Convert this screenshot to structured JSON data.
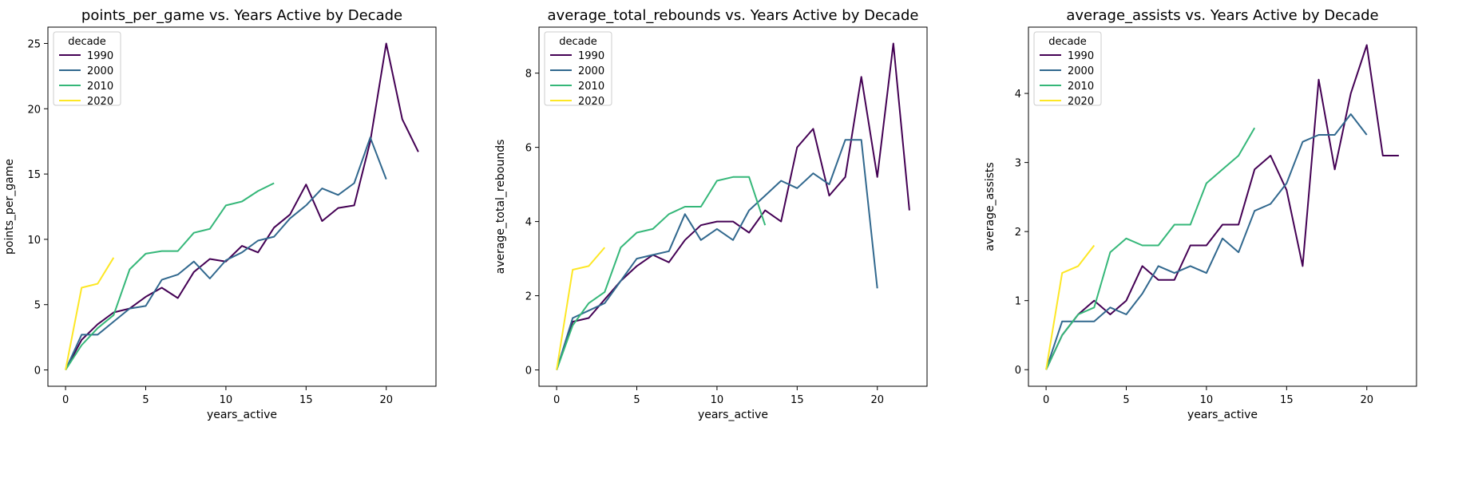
{
  "chart_data": [
    {
      "type": "line",
      "title": "points_per_game vs. Years Active by Decade",
      "xlabel": "years_active",
      "ylabel": "points_per_game",
      "xlim": [
        -1.1,
        23.1
      ],
      "ylim": [
        -1.25,
        26.25
      ],
      "xticks": [
        0,
        5,
        10,
        15,
        20
      ],
      "yticks": [
        0,
        5,
        10,
        15,
        20,
        25
      ],
      "legend": {
        "title": "decade",
        "placement": "top-left"
      },
      "series": [
        {
          "name": "1990",
          "color": "#440154",
          "x": [
            0,
            1,
            2,
            3,
            4,
            5,
            6,
            7,
            8,
            9,
            10,
            11,
            12,
            13,
            14,
            15,
            16,
            17,
            18,
            19,
            20,
            21,
            22
          ],
          "values": [
            0,
            2.3,
            3.5,
            4.4,
            4.7,
            5.6,
            6.3,
            5.5,
            7.5,
            8.5,
            8.3,
            9.5,
            9.0,
            10.9,
            11.9,
            14.2,
            11.4,
            12.4,
            12.6,
            17.5,
            25.0,
            19.2,
            16.7
          ]
        },
        {
          "name": "2000",
          "color": "#31688e",
          "x": [
            0,
            1,
            2,
            3,
            4,
            5,
            6,
            7,
            8,
            9,
            10,
            11,
            12,
            13,
            14,
            15,
            16,
            17,
            18,
            19,
            20
          ],
          "values": [
            0,
            2.7,
            2.7,
            3.7,
            4.7,
            4.9,
            6.9,
            7.3,
            8.3,
            7.0,
            8.4,
            9.0,
            9.9,
            10.2,
            11.6,
            12.6,
            13.9,
            13.4,
            14.3,
            17.8,
            14.6
          ]
        },
        {
          "name": "2010",
          "color": "#35b779",
          "x": [
            0,
            1,
            2,
            3,
            4,
            5,
            6,
            7,
            8,
            9,
            10,
            11,
            12,
            13
          ],
          "values": [
            0,
            1.9,
            3.2,
            4.2,
            7.7,
            8.9,
            9.1,
            9.1,
            10.5,
            10.8,
            12.6,
            12.9,
            13.7,
            14.3
          ]
        },
        {
          "name": "2020",
          "color": "#fde725",
          "x": [
            0,
            1,
            2,
            3
          ],
          "values": [
            0,
            6.3,
            6.6,
            8.6
          ]
        }
      ]
    },
    {
      "type": "line",
      "title": "average_total_rebounds vs. Years Active by Decade",
      "xlabel": "years_active",
      "ylabel": "average_total_rebounds",
      "xlim": [
        -1.1,
        23.1
      ],
      "ylim": [
        -0.44,
        9.24
      ],
      "xticks": [
        0,
        5,
        10,
        15,
        20
      ],
      "yticks": [
        0,
        2,
        4,
        6,
        8
      ],
      "legend": {
        "title": "decade",
        "placement": "top-left"
      },
      "series": [
        {
          "name": "1990",
          "color": "#440154",
          "x": [
            0,
            1,
            2,
            3,
            4,
            5,
            6,
            7,
            8,
            9,
            10,
            11,
            12,
            13,
            14,
            15,
            16,
            17,
            18,
            19,
            20,
            21,
            22
          ],
          "values": [
            0,
            1.3,
            1.4,
            1.9,
            2.4,
            2.8,
            3.1,
            2.9,
            3.5,
            3.9,
            4.0,
            4.0,
            3.7,
            4.3,
            4.0,
            6.0,
            6.5,
            4.7,
            5.2,
            7.9,
            5.2,
            8.8,
            4.3
          ]
        },
        {
          "name": "2000",
          "color": "#31688e",
          "x": [
            0,
            1,
            2,
            3,
            4,
            5,
            6,
            7,
            8,
            9,
            10,
            11,
            12,
            13,
            14,
            15,
            16,
            17,
            18,
            19,
            20
          ],
          "values": [
            0,
            1.4,
            1.6,
            1.8,
            2.4,
            3.0,
            3.1,
            3.2,
            4.2,
            3.5,
            3.8,
            3.5,
            4.3,
            4.7,
            5.1,
            4.9,
            5.3,
            5.0,
            6.2,
            6.2,
            2.2
          ]
        },
        {
          "name": "2010",
          "color": "#35b779",
          "x": [
            0,
            1,
            2,
            3,
            4,
            5,
            6,
            7,
            8,
            9,
            10,
            11,
            12,
            13
          ],
          "values": [
            0,
            1.2,
            1.8,
            2.1,
            3.3,
            3.7,
            3.8,
            4.2,
            4.4,
            4.4,
            5.1,
            5.2,
            5.2,
            3.9
          ]
        },
        {
          "name": "2020",
          "color": "#fde725",
          "x": [
            0,
            1,
            2,
            3
          ],
          "values": [
            0,
            2.7,
            2.8,
            3.3
          ]
        }
      ]
    },
    {
      "type": "line",
      "title": "average_assists vs. Years Active by Decade",
      "xlabel": "years_active",
      "ylabel": "average_assists",
      "xlim": [
        -1.1,
        23.1
      ],
      "ylim": [
        -0.24,
        4.96
      ],
      "xticks": [
        0,
        5,
        10,
        15,
        20
      ],
      "yticks": [
        0,
        1,
        2,
        3,
        4
      ],
      "legend": {
        "title": "decade",
        "placement": "top-left"
      },
      "series": [
        {
          "name": "1990",
          "color": "#440154",
          "x": [
            0,
            1,
            2,
            3,
            4,
            5,
            6,
            7,
            8,
            9,
            10,
            11,
            12,
            13,
            14,
            15,
            16,
            17,
            18,
            19,
            20,
            21,
            22
          ],
          "values": [
            0,
            0.5,
            0.8,
            1.0,
            0.8,
            1.0,
            1.5,
            1.3,
            1.3,
            1.8,
            1.8,
            2.1,
            2.1,
            2.9,
            3.1,
            2.6,
            1.5,
            4.2,
            2.9,
            4.0,
            4.7,
            3.1,
            3.1
          ]
        },
        {
          "name": "2000",
          "color": "#31688e",
          "x": [
            0,
            1,
            2,
            3,
            4,
            5,
            6,
            7,
            8,
            9,
            10,
            11,
            12,
            13,
            14,
            15,
            16,
            17,
            18,
            19,
            20
          ],
          "values": [
            0,
            0.7,
            0.7,
            0.7,
            0.9,
            0.8,
            1.1,
            1.5,
            1.4,
            1.5,
            1.4,
            1.9,
            1.7,
            2.3,
            2.4,
            2.7,
            3.3,
            3.4,
            3.4,
            3.7,
            3.4
          ]
        },
        {
          "name": "2010",
          "color": "#35b779",
          "x": [
            0,
            1,
            2,
            3,
            4,
            5,
            6,
            7,
            8,
            9,
            10,
            11,
            12,
            13
          ],
          "values": [
            0,
            0.5,
            0.8,
            0.9,
            1.7,
            1.9,
            1.8,
            1.8,
            2.1,
            2.1,
            2.7,
            2.9,
            3.1,
            3.5
          ]
        },
        {
          "name": "2020",
          "color": "#fde725",
          "x": [
            0,
            1,
            2,
            3
          ],
          "values": [
            0,
            1.4,
            1.5,
            1.8
          ]
        }
      ]
    }
  ]
}
